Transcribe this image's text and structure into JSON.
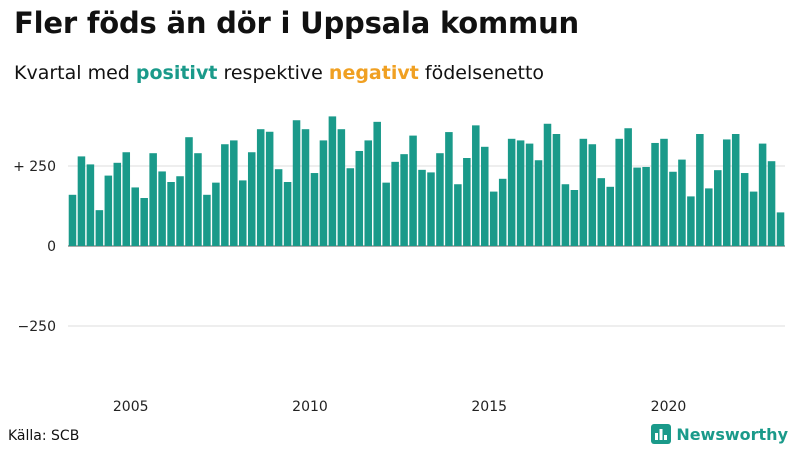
{
  "title": "Fler föds än dör i Uppsala kommun",
  "subtitle": {
    "prefix": "Kvartal med",
    "positive_word": "positivt",
    "middle": "respektive",
    "negative_word": "negativt",
    "suffix": "födelsenetto"
  },
  "source": "Källa: SCB",
  "brand": {
    "name": "Newsworthy",
    "icon": "newsworthy-logo-icon"
  },
  "colors": {
    "positive": "#1a9a8a",
    "negative": "#f0a022",
    "grid": "#dddddd",
    "baseline": "#555555"
  },
  "chart_data": {
    "type": "bar",
    "title": "Fler föds än dör i Uppsala kommun",
    "y_ticks": [
      250,
      0,
      -250
    ],
    "y_tick_labels": [
      "+ 250",
      "0",
      "−250"
    ],
    "ylim": [
      -400,
      450
    ],
    "x_tick_labels": [
      "2005",
      "2010",
      "2015",
      "2020"
    ],
    "x_tick_years": [
      2005,
      2010,
      2015,
      2020
    ],
    "first_period": "2003 Q2",
    "grid": true,
    "values": [
      160,
      280,
      255,
      112,
      220,
      260,
      293,
      183,
      150,
      290,
      233,
      200,
      218,
      340,
      290,
      160,
      198,
      318,
      330,
      205,
      293,
      365,
      357,
      240,
      200,
      393,
      365,
      228,
      330,
      405,
      365,
      243,
      297,
      330,
      388,
      198,
      263,
      287,
      345,
      238,
      230,
      290,
      356,
      193,
      275,
      377,
      310,
      170,
      210,
      335,
      330,
      320,
      268,
      382,
      350,
      193,
      175,
      335,
      318,
      212,
      185,
      335,
      368,
      245,
      247,
      322,
      335,
      232,
      270,
      155,
      350,
      180,
      237,
      333,
      350,
      228,
      170,
      320,
      265,
      105
    ]
  }
}
